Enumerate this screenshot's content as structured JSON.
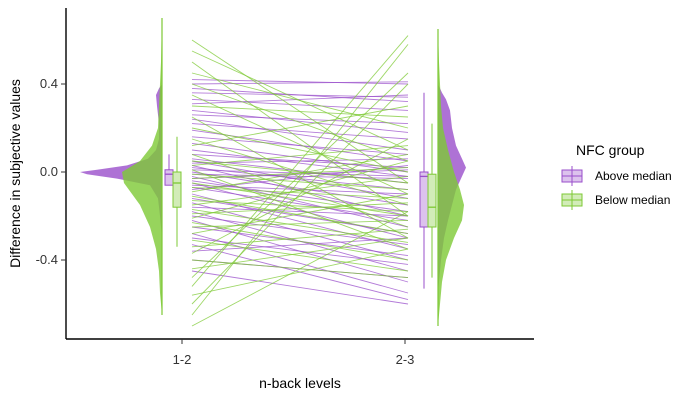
{
  "chart_data": {
    "type": "raincloud",
    "xlabel": "n-back levels",
    "ylabel": "Difference in subjective values",
    "categories": [
      "1-2",
      "2-3"
    ],
    "ylim": [
      -0.73,
      0.75
    ],
    "yticks": [
      -0.4,
      0.0,
      0.4
    ],
    "ytick_labels": [
      "-0.4",
      "0.0",
      "0.4"
    ],
    "legend": {
      "title": "NFC group",
      "placement": "right",
      "entries": [
        "Above median",
        "Below median"
      ]
    },
    "series": [
      {
        "name": "Above median",
        "color": "#9A4FCB",
        "box": {
          "1-2": {
            "min": -0.06,
            "q1": -0.06,
            "median": -0.01,
            "q3": 0.01,
            "max": 0.08
          },
          "2-3": {
            "min": -0.53,
            "q1": -0.25,
            "median": -0.02,
            "q3": 0.0,
            "max": 0.36
          }
        },
        "paired_lines": [
          [
            0.42,
            0.4
          ],
          [
            0.4,
            0.41
          ],
          [
            0.38,
            0.32
          ],
          [
            0.36,
            0.34
          ],
          [
            0.33,
            0.28
          ],
          [
            0.31,
            0.35
          ],
          [
            0.28,
            0.18
          ],
          [
            0.26,
            0.22
          ],
          [
            0.24,
            0.1
          ],
          [
            0.22,
            0.15
          ],
          [
            0.19,
            0.05
          ],
          [
            0.16,
            0.08
          ],
          [
            0.13,
            0.0
          ],
          [
            0.1,
            -0.02
          ],
          [
            0.08,
            0.02
          ],
          [
            0.06,
            -0.05
          ],
          [
            0.05,
            -0.12
          ],
          [
            0.04,
            0.06
          ],
          [
            0.03,
            -0.2
          ],
          [
            0.02,
            -0.08
          ],
          [
            0.01,
            -0.02
          ],
          [
            0.0,
            -0.15
          ],
          [
            -0.01,
            -0.03
          ],
          [
            -0.02,
            -0.25
          ],
          [
            -0.03,
            0.01
          ],
          [
            -0.04,
            -0.18
          ],
          [
            -0.05,
            -0.3
          ],
          [
            -0.06,
            -0.1
          ],
          [
            -0.07,
            -0.22
          ],
          [
            -0.08,
            0.03
          ],
          [
            -0.1,
            -0.35
          ],
          [
            -0.12,
            -0.28
          ],
          [
            -0.14,
            -0.4
          ],
          [
            -0.16,
            -0.2
          ],
          [
            -0.18,
            -0.45
          ],
          [
            -0.2,
            -0.33
          ],
          [
            -0.22,
            -0.5
          ],
          [
            -0.25,
            -0.38
          ],
          [
            -0.28,
            -0.55
          ],
          [
            -0.3,
            -0.42
          ],
          [
            -0.33,
            -0.58
          ],
          [
            -0.36,
            -0.3
          ],
          [
            -0.4,
            -0.48
          ],
          [
            -0.45,
            -0.6
          ]
        ]
      },
      {
        "name": "Below median",
        "color": "#7DC934",
        "box": {
          "1-2": {
            "min": -0.34,
            "q1": -0.16,
            "median": -0.05,
            "q3": 0.0,
            "max": 0.16
          },
          "2-3": {
            "min": -0.48,
            "q1": -0.25,
            "median": -0.16,
            "q3": -0.01,
            "max": 0.22
          }
        },
        "paired_lines": [
          [
            0.6,
            -0.05
          ],
          [
            0.55,
            0.1
          ],
          [
            0.5,
            -0.2
          ],
          [
            0.45,
            0.2
          ],
          [
            0.4,
            0.05
          ],
          [
            0.35,
            -0.1
          ],
          [
            0.3,
            0.25
          ],
          [
            0.25,
            -0.3
          ],
          [
            0.2,
            0.0
          ],
          [
            0.15,
            -0.15
          ],
          [
            0.12,
            0.3
          ],
          [
            0.08,
            -0.25
          ],
          [
            0.05,
            -0.05
          ],
          [
            0.03,
            0.12
          ],
          [
            0.01,
            -0.35
          ],
          [
            -0.01,
            -0.08
          ],
          [
            -0.03,
            0.02
          ],
          [
            -0.05,
            -0.2
          ],
          [
            -0.07,
            -0.12
          ],
          [
            -0.09,
            0.08
          ],
          [
            -0.11,
            -0.28
          ],
          [
            -0.13,
            -0.18
          ],
          [
            -0.15,
            -0.02
          ],
          [
            -0.17,
            -0.32
          ],
          [
            -0.19,
            -0.14
          ],
          [
            -0.21,
            0.05
          ],
          [
            -0.23,
            -0.4
          ],
          [
            -0.25,
            -0.22
          ],
          [
            -0.28,
            -0.1
          ],
          [
            -0.31,
            -0.45
          ],
          [
            -0.34,
            -0.26
          ],
          [
            -0.37,
            0.15
          ],
          [
            -0.4,
            -0.48
          ],
          [
            -0.44,
            -0.3
          ],
          [
            -0.48,
            0.45
          ],
          [
            -0.52,
            0.62
          ],
          [
            -0.56,
            -0.35
          ],
          [
            -0.6,
            0.4
          ],
          [
            -0.65,
            0.58
          ],
          [
            -0.7,
            -0.18
          ]
        ]
      }
    ]
  }
}
